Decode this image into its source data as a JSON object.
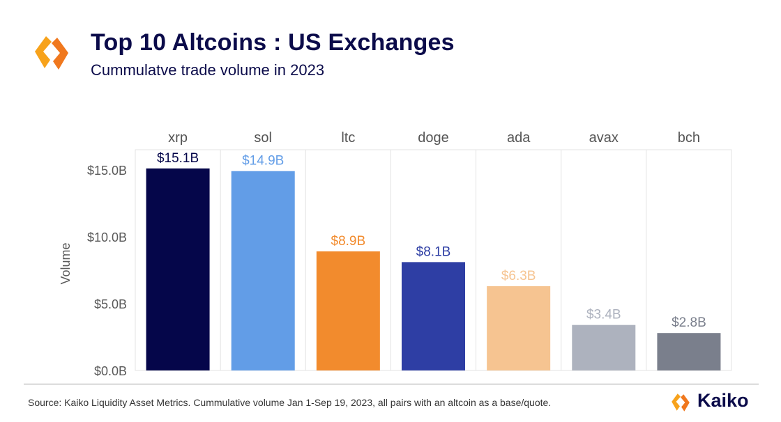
{
  "header": {
    "title": "Top 10 Altcoins : US Exchanges",
    "subtitle": "Cummulatve trade volume in 2023",
    "logo_icon": "kaiko-logo-icon"
  },
  "footer": {
    "source": "Source: Kaiko Liquidity Asset Metrics. Cummulative volume Jan 1-Sep 19, 2023, all pairs with an altcoin as a base/quote.",
    "brand": "Kaiko"
  },
  "colors": {
    "title": "#0b0b4a",
    "logo_orange": "#f7a21b",
    "logo_orange_dark": "#f0781e"
  },
  "chart_data": {
    "type": "bar",
    "ylabel": "Volume",
    "ylim": [
      0,
      16.5
    ],
    "yticks": [
      0,
      5,
      10,
      15
    ],
    "ytick_labels": [
      "$0.0B",
      "$5.0B",
      "$10.0B",
      "$15.0B"
    ],
    "grid": "vertical panel separators",
    "categories": [
      "xrp",
      "sol",
      "ltc",
      "doge",
      "ada",
      "avax",
      "bch"
    ],
    "values": [
      15.1,
      14.9,
      8.9,
      8.1,
      6.3,
      3.4,
      2.8
    ],
    "value_labels": [
      "$15.1B",
      "$14.9B",
      "$8.9B",
      "$8.1B",
      "$6.3B",
      "$3.4B",
      "$2.8B"
    ],
    "colors": [
      "#05064a",
      "#629de7",
      "#f28b2d",
      "#2e3ea4",
      "#f6c491",
      "#adb2be",
      "#7a7f8c"
    ]
  }
}
